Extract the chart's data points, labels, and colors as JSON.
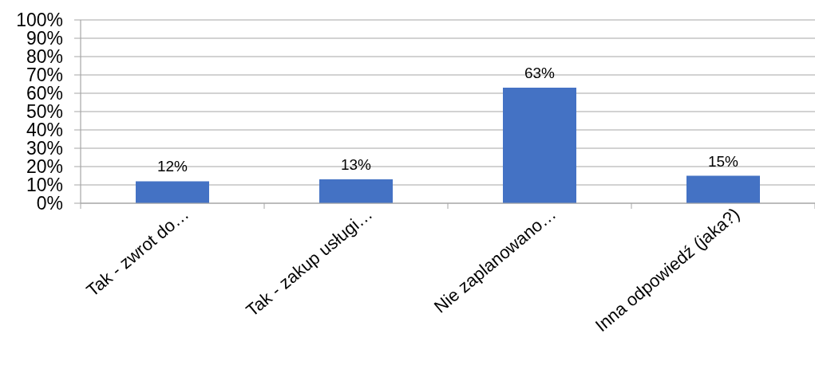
{
  "chart_data": {
    "type": "bar",
    "categories": [
      "Tak - zwrot do…",
      "Tak - zakup usługi…",
      "Nie zaplanowano…",
      "Inna odpowiedź (jaka?)"
    ],
    "values": [
      12,
      13,
      63,
      15
    ],
    "color": "#4472c4",
    "value_labels": [
      "12%",
      "13%",
      "63%",
      "15%"
    ],
    "ylim": [
      0,
      100
    ],
    "yticks": [
      {
        "value": 0,
        "label": "0%"
      },
      {
        "value": 10,
        "label": "10%"
      },
      {
        "value": 20,
        "label": "20%"
      },
      {
        "value": 30,
        "label": "30%"
      },
      {
        "value": 40,
        "label": "40%"
      },
      {
        "value": 50,
        "label": "50%"
      },
      {
        "value": 60,
        "label": "60%"
      },
      {
        "value": 70,
        "label": "70%"
      },
      {
        "value": 80,
        "label": "80%"
      },
      {
        "value": 90,
        "label": "90%"
      },
      {
        "value": 100,
        "label": "100%"
      }
    ],
    "grid": "y"
  }
}
